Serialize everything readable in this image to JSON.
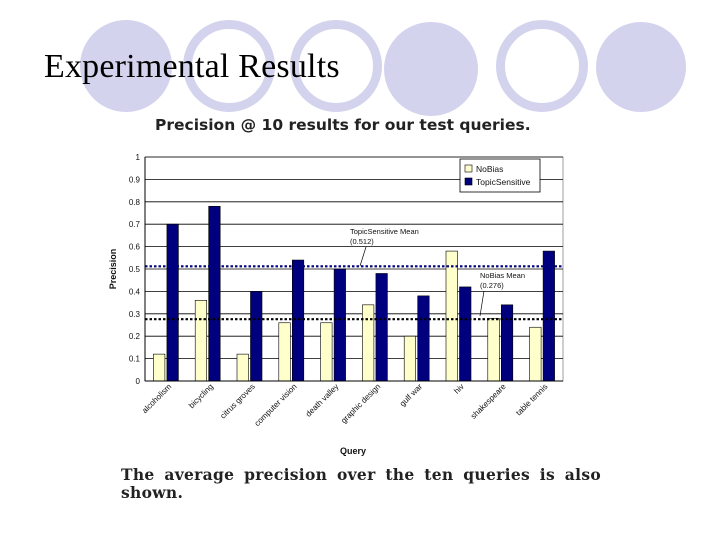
{
  "slide": {
    "title": "Experimental Results",
    "caption": "The average precision over the ten queries is also shown."
  },
  "colors": {
    "decor": "#d3d3ee",
    "nobias": "#ffffcc",
    "topic": "#00007f"
  },
  "chart_data": {
    "type": "bar",
    "title": "Precision @ 10 results for our test queries.",
    "xlabel": "Query",
    "ylabel": "Precision",
    "ylim": [
      0,
      1
    ],
    "yticks": [
      "0",
      "0.1",
      "0.2",
      "0.3",
      "0.4",
      "0.5",
      "0.6",
      "0.7",
      "0.8",
      "0.9",
      "1"
    ],
    "grid": true,
    "legend_position": "top-right",
    "categories": [
      "alcoholism",
      "bicycling",
      "citrus groves",
      "computer vision",
      "death valley",
      "graphic design",
      "gulf war",
      "hiv",
      "shakespeare",
      "table tennis"
    ],
    "series": [
      {
        "name": "NoBias",
        "values": [
          0.12,
          0.36,
          0.12,
          0.26,
          0.26,
          0.34,
          0.2,
          0.58,
          0.28,
          0.24
        ]
      },
      {
        "name": "TopicSensitive",
        "values": [
          0.7,
          0.78,
          0.4,
          0.54,
          0.5,
          0.48,
          0.38,
          0.42,
          0.34,
          0.58
        ]
      }
    ],
    "means": [
      {
        "series": "TopicSensitive",
        "label": "TopicSensitive Mean",
        "value_label": "(0.512)",
        "value": 0.512
      },
      {
        "series": "NoBias",
        "label": "NoBias Mean",
        "value_label": "(0.276)",
        "value": 0.276
      }
    ]
  }
}
